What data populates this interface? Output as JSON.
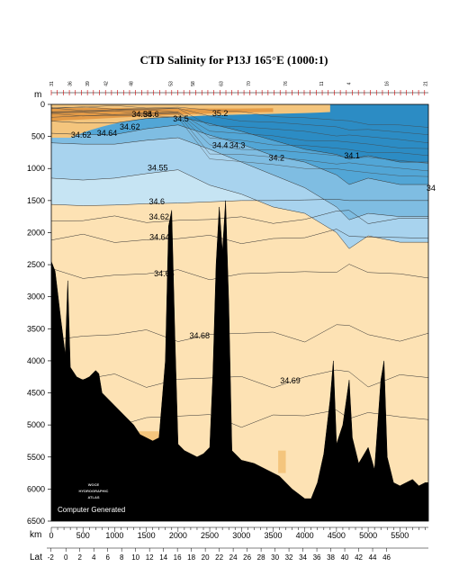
{
  "title": "CTD Salinity for P13J 165°E (1000:1)",
  "chart_data": {
    "type": "heatmap",
    "title": "CTD Salinity for P13J 165°E (1000:1)",
    "xlabel": "km",
    "ylabel": "m",
    "x_secondary_label": "Lat",
    "xlim": [
      0,
      5950
    ],
    "ylim": [
      6500,
      0
    ],
    "x_ticks": [
      0,
      500,
      1000,
      1500,
      2000,
      2500,
      3000,
      3500,
      4000,
      4500,
      5000,
      5500
    ],
    "y_ticks": [
      0,
      500,
      1000,
      1500,
      2000,
      2500,
      3000,
      3500,
      4000,
      4500,
      5000,
      5500,
      6000,
      6500
    ],
    "lat_ticks": [
      {
        "label": "-4",
        "km": -310
      },
      {
        "label": "-2",
        "km": -10
      },
      {
        "label": "0",
        "km": 230
      },
      {
        "label": "2",
        "km": 450
      },
      {
        "label": "4",
        "km": 670
      },
      {
        "label": "6",
        "km": 890
      },
      {
        "label": "8",
        "km": 1110
      },
      {
        "label": "10",
        "km": 1330
      },
      {
        "label": "12",
        "km": 1550
      },
      {
        "label": "14",
        "km": 1770
      },
      {
        "label": "16",
        "km": 1990
      },
      {
        "label": "18",
        "km": 2210
      },
      {
        "label": "20",
        "km": 2430
      },
      {
        "label": "22",
        "km": 2650
      },
      {
        "label": "24",
        "km": 2870
      },
      {
        "label": "26",
        "km": 3090
      },
      {
        "label": "28",
        "km": 3310
      },
      {
        "label": "30",
        "km": 3530
      },
      {
        "label": "32",
        "km": 3750
      },
      {
        "label": "34",
        "km": 3970
      },
      {
        "label": "36",
        "km": 4190
      },
      {
        "label": "38",
        "km": 4410
      },
      {
        "label": "40",
        "km": 4630
      },
      {
        "label": "42",
        "km": 4850
      },
      {
        "label": "44",
        "km": 5070
      },
      {
        "label": "46",
        "km": 5290
      }
    ],
    "station_labels": [
      {
        "label": "31",
        "km": 0
      },
      {
        "label": "36",
        "km": 290
      },
      {
        "label": "39",
        "km": 570
      },
      {
        "label": "42",
        "km": 860
      },
      {
        "label": "48",
        "km": 1260
      },
      {
        "label": "53",
        "km": 1880
      },
      {
        "label": "58",
        "km": 2230
      },
      {
        "label": "63",
        "km": 2680
      },
      {
        "label": "70",
        "km": 3110
      },
      {
        "label": "76",
        "km": 3690
      },
      {
        "label": "11",
        "km": 4260
      },
      {
        "label": "4",
        "km": 4690
      },
      {
        "label": "16",
        "km": 5290
      },
      {
        "label": "21",
        "km": 5900
      }
    ],
    "contour_levels": [
      34.1,
      34.2,
      34.3,
      34.4,
      34.5,
      34.55,
      34.6,
      34.62,
      34.64,
      34.66,
      34.68,
      34.69
    ],
    "contour_labels": [
      {
        "text": "35.2",
        "km": 2540,
        "depth": 180
      },
      {
        "text": "34.5",
        "km": 1920,
        "depth": 270
      },
      {
        "text": "34.6",
        "km": 1450,
        "depth": 200
      },
      {
        "text": "34.55",
        "km": 1270,
        "depth": 200
      },
      {
        "text": "34.62",
        "km": 1080,
        "depth": 390
      },
      {
        "text": "34.64",
        "km": 720,
        "depth": 490
      },
      {
        "text": "34.62",
        "km": 310,
        "depth": 520
      },
      {
        "text": "34.4",
        "km": 2540,
        "depth": 680
      },
      {
        "text": "34.3",
        "km": 2810,
        "depth": 680
      },
      {
        "text": "34.2",
        "km": 3430,
        "depth": 880
      },
      {
        "text": "34.1",
        "km": 4620,
        "depth": 840
      },
      {
        "text": "34",
        "km": 5920,
        "depth": 1350
      },
      {
        "text": "34.55",
        "km": 1520,
        "depth": 1030
      },
      {
        "text": "34.6",
        "km": 1540,
        "depth": 1560
      },
      {
        "text": "34.62",
        "km": 1540,
        "depth": 1800
      },
      {
        "text": "34.64",
        "km": 1550,
        "depth": 2110
      },
      {
        "text": "34.66",
        "km": 1620,
        "depth": 2680
      },
      {
        "text": "34.68",
        "km": 2180,
        "depth": 3650
      },
      {
        "text": "34.69",
        "km": 3610,
        "depth": 4350
      }
    ],
    "salinity_layers": [
      {
        "range": "< 34.2",
        "color": "#2c8cc4"
      },
      {
        "range": "34.2 - 34.4",
        "color": "#52a6d6"
      },
      {
        "range": "34.4 - 34.5",
        "color": "#7fbde2"
      },
      {
        "range": "34.5 - 34.6",
        "color": "#a8d3ee"
      },
      {
        "range": "34.6 - 34.66",
        "color": "#c6e4f3"
      },
      {
        "range": "> 34.66",
        "color": "#fde2b4"
      },
      {
        "range": "> 34.7",
        "color": "#f4c57d"
      },
      {
        "range": "> 35",
        "color": "#e49b47"
      }
    ],
    "bathymetry": [
      [
        0,
        2450
      ],
      [
        60,
        2600
      ],
      [
        150,
        3350
      ],
      [
        220,
        3900
      ],
      [
        260,
        2750
      ],
      [
        300,
        4100
      ],
      [
        400,
        4250
      ],
      [
        500,
        4300
      ],
      [
        600,
        4250
      ],
      [
        700,
        4150
      ],
      [
        750,
        4200
      ],
      [
        800,
        4500
      ],
      [
        900,
        4600
      ],
      [
        1000,
        4700
      ],
      [
        1100,
        4800
      ],
      [
        1200,
        4900
      ],
      [
        1300,
        5000
      ],
      [
        1400,
        5150
      ],
      [
        1500,
        5200
      ],
      [
        1600,
        5250
      ],
      [
        1700,
        5200
      ],
      [
        1800,
        4000
      ],
      [
        1850,
        1900
      ],
      [
        1900,
        1650
      ],
      [
        1950,
        3600
      ],
      [
        2000,
        5300
      ],
      [
        2100,
        5400
      ],
      [
        2200,
        5450
      ],
      [
        2300,
        5500
      ],
      [
        2400,
        5450
      ],
      [
        2500,
        5350
      ],
      [
        2550,
        4200
      ],
      [
        2600,
        2500
      ],
      [
        2650,
        1600
      ],
      [
        2700,
        2300
      ],
      [
        2750,
        1500
      ],
      [
        2800,
        3100
      ],
      [
        2850,
        5400
      ],
      [
        3000,
        5550
      ],
      [
        3200,
        5600
      ],
      [
        3400,
        5700
      ],
      [
        3600,
        5800
      ],
      [
        3800,
        6000
      ],
      [
        4000,
        6150
      ],
      [
        4100,
        6150
      ],
      [
        4200,
        5900
      ],
      [
        4300,
        5450
      ],
      [
        4400,
        4600
      ],
      [
        4450,
        4000
      ],
      [
        4500,
        5300
      ],
      [
        4600,
        5000
      ],
      [
        4700,
        4300
      ],
      [
        4750,
        5200
      ],
      [
        4850,
        5600
      ],
      [
        5000,
        5350
      ],
      [
        5100,
        5700
      ],
      [
        5200,
        4300
      ],
      [
        5250,
        4000
      ],
      [
        5300,
        5500
      ],
      [
        5400,
        5900
      ],
      [
        5500,
        5950
      ],
      [
        5600,
        5900
      ],
      [
        5700,
        5850
      ],
      [
        5800,
        5950
      ],
      [
        5900,
        5900
      ]
    ]
  },
  "logo": {
    "line1": "WOCE",
    "line2": "HYDROGRAPHIC",
    "line3": "ATLAS"
  },
  "footer": "Computer Generated"
}
